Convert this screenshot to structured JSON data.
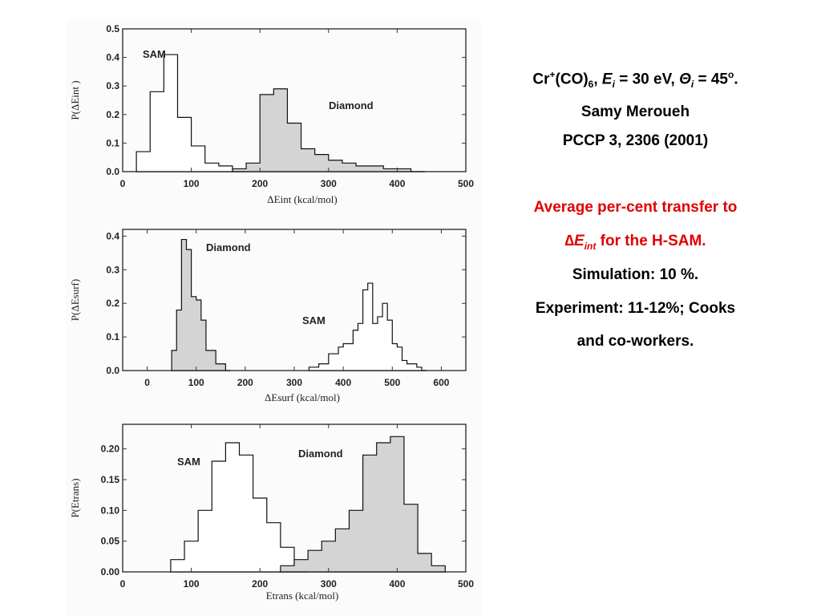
{
  "info": {
    "title": {
      "cr": "Cr",
      "plus": "+",
      "co": "(CO)",
      "six": "6",
      "comma": ", ",
      "e": "E",
      "e_sub": "i",
      "e_val": " = 30 eV, ",
      "theta": "Θ",
      "theta_sub": "i",
      "theta_val": " = 45",
      "deg": "o",
      "end": "."
    },
    "author": "Samy Meroueh",
    "reference": "PCCP 3, 2306 (2001)",
    "red_line1": "Average per-cent transfer to",
    "red_delta": "∆",
    "red_e": "E",
    "red_e_sub": "int",
    "red_tail": " for the H-SAM.",
    "simulation": "Simulation: 10 %.",
    "experiment": "Experiment: 11-12%; Cooks",
    "coworkers": "and co-workers."
  },
  "colors": {
    "red_text": "#e00000",
    "diamond_fill": "#d4d4d4",
    "sam_fill": "#ffffff",
    "frame": "#333333"
  },
  "chart_data": [
    {
      "type": "histogram",
      "xlabel": "ΔEint (kcal/mol)",
      "ylabel": "P(ΔEint )",
      "xlim": [
        0,
        500
      ],
      "ylim": [
        0,
        0.5
      ],
      "xticks": [
        0,
        100,
        200,
        300,
        400,
        500
      ],
      "yticks": [
        0.0,
        0.1,
        0.2,
        0.3,
        0.4,
        0.5
      ],
      "ytick_labels": [
        "0.0",
        "0.1",
        "0.2",
        "0.3",
        "0.4",
        "0.5"
      ],
      "annotations": [
        "SAM",
        "Diamond"
      ],
      "series": [
        {
          "name": "SAM",
          "bin_edges": [
            20,
            40,
            60,
            80,
            100,
            120,
            140,
            160,
            180
          ],
          "values": [
            0.07,
            0.28,
            0.41,
            0.19,
            0.09,
            0.03,
            0.02,
            0.0
          ]
        },
        {
          "name": "Diamond",
          "bin_edges": [
            160,
            180,
            200,
            220,
            240,
            260,
            280,
            300,
            320,
            340,
            360,
            380,
            400,
            420,
            440
          ],
          "values": [
            0.01,
            0.03,
            0.27,
            0.29,
            0.17,
            0.08,
            0.06,
            0.04,
            0.03,
            0.02,
            0.02,
            0.01,
            0.01,
            0.0
          ]
        }
      ]
    },
    {
      "type": "histogram",
      "xlabel": "ΔEsurf (kcal/mol)",
      "ylabel": "P(ΔEsurf)",
      "xlim": [
        -50,
        650
      ],
      "ylim": [
        0,
        0.42
      ],
      "xticks": [
        0,
        100,
        200,
        300,
        400,
        500,
        600
      ],
      "yticks": [
        0.0,
        0.1,
        0.2,
        0.3,
        0.4
      ],
      "ytick_labels": [
        "0.0",
        "0.1",
        "0.2",
        "0.3",
        "0.4"
      ],
      "annotations": [
        "Diamond",
        "SAM"
      ],
      "series": [
        {
          "name": "Diamond",
          "bin_edges": [
            50,
            60,
            70,
            80,
            90,
            100,
            110,
            120,
            130,
            140,
            150,
            160,
            170
          ],
          "values": [
            0.06,
            0.18,
            0.39,
            0.36,
            0.22,
            0.21,
            0.15,
            0.06,
            0.06,
            0.02,
            0.02,
            0.0
          ]
        },
        {
          "name": "SAM",
          "bin_edges": [
            330,
            350,
            370,
            390,
            400,
            420,
            430,
            440,
            450,
            460,
            470,
            480,
            490,
            500,
            510,
            520,
            530,
            540,
            550,
            560,
            570
          ],
          "values": [
            0.01,
            0.02,
            0.05,
            0.07,
            0.08,
            0.12,
            0.14,
            0.24,
            0.26,
            0.14,
            0.16,
            0.2,
            0.15,
            0.08,
            0.07,
            0.03,
            0.02,
            0.02,
            0.01,
            0.0
          ]
        }
      ]
    },
    {
      "type": "histogram",
      "xlabel": "Etrans (kcal/mol)",
      "ylabel": "P(Etrans)",
      "xlim": [
        0,
        500
      ],
      "ylim": [
        0,
        0.24
      ],
      "xticks": [
        0,
        100,
        200,
        300,
        400,
        500
      ],
      "yticks": [
        0.0,
        0.05,
        0.1,
        0.15,
        0.2
      ],
      "ytick_labels": [
        "0.00",
        "0.05",
        "0.10",
        "0.15",
        "0.20"
      ],
      "annotations": [
        "SAM",
        "Diamond"
      ],
      "series": [
        {
          "name": "SAM",
          "bin_edges": [
            70,
            90,
            110,
            130,
            150,
            170,
            190,
            210,
            230,
            250,
            270
          ],
          "values": [
            0.02,
            0.05,
            0.1,
            0.18,
            0.21,
            0.19,
            0.12,
            0.08,
            0.04,
            0.01
          ]
        },
        {
          "name": "Diamond",
          "bin_edges": [
            230,
            250,
            270,
            290,
            310,
            330,
            350,
            370,
            390,
            410,
            430,
            450,
            470
          ],
          "values": [
            0.01,
            0.02,
            0.035,
            0.05,
            0.07,
            0.1,
            0.19,
            0.21,
            0.22,
            0.11,
            0.03,
            0.01
          ]
        }
      ]
    }
  ]
}
